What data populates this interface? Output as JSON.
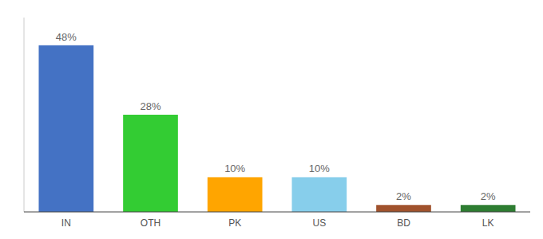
{
  "chart_data": {
    "type": "bar",
    "categories": [
      "IN",
      "OTH",
      "PK",
      "US",
      "BD",
      "LK"
    ],
    "values": [
      48,
      28,
      10,
      10,
      2,
      2
    ],
    "value_labels": [
      "48%",
      "28%",
      "10%",
      "10%",
      "2%",
      "2%"
    ],
    "colors": [
      "#4472C4",
      "#33CC33",
      "#FFA500",
      "#87CEEB",
      "#A0522D",
      "#2E7D32"
    ],
    "ylim": [
      0,
      56
    ],
    "data_labels": true,
    "tick_labels": "x"
  }
}
